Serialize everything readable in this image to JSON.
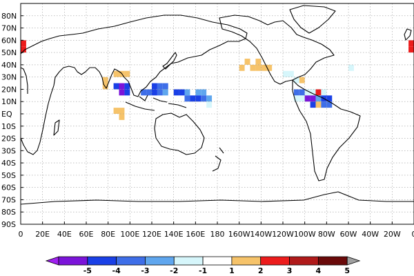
{
  "map": {
    "projection": "equirectangular",
    "lon_range": [
      0,
      360
    ],
    "lat_range": [
      -90,
      90
    ],
    "grid": true,
    "lat_labels": [
      "80N",
      "70N",
      "60N",
      "50N",
      "40N",
      "30N",
      "20N",
      "10N",
      "EQ",
      "10S",
      "20S",
      "30S",
      "40S",
      "50S",
      "60S",
      "70S",
      "80S",
      "90S"
    ],
    "lat_values": [
      80,
      70,
      60,
      50,
      40,
      30,
      20,
      10,
      0,
      -10,
      -20,
      -30,
      -40,
      -50,
      -60,
      -70,
      -80,
      -90
    ],
    "lon_labels": [
      "0",
      "20E",
      "40E",
      "60E",
      "80E",
      "100E",
      "120E",
      "140E",
      "160E",
      "180",
      "160W",
      "140W",
      "120W",
      "100W",
      "80W",
      "60W",
      "40W",
      "20W",
      "0"
    ],
    "lon_values": [
      0,
      20,
      40,
      60,
      80,
      100,
      120,
      140,
      160,
      180,
      200,
      220,
      240,
      260,
      280,
      300,
      320,
      340,
      360
    ]
  },
  "colors": {
    "-5": "#7b14d9",
    "-4": "#1a40e6",
    "-3": "#3e6ee8",
    "-2": "#5fa6ee",
    "-1": "#d6f6fb",
    "1": "#ffffff",
    "2": "#f6c36a",
    "3": "#ec1c1c",
    "4": "#b01a1a",
    "5": "#6a0a0a"
  },
  "colorbar": {
    "labels": [
      "-5",
      "-4",
      "-3",
      "-2",
      "-1",
      "1",
      "2",
      "3",
      "4",
      "5"
    ],
    "under_color": "#a020f0",
    "over_color": "#a0a0a0",
    "bin_colors": [
      "#7b14d9",
      "#1a40e6",
      "#3e6ee8",
      "#5fa6ee",
      "#d6f6fb",
      "#ffffff",
      "#f6c36a",
      "#ec1c1c",
      "#b01a1a",
      "#6a0a0a",
      "#a0a0a0"
    ]
  },
  "chart_data": {
    "type": "heatmap",
    "cell_size_deg": 5,
    "cells": [
      {
        "lon": 0,
        "lat": 55,
        "v": 3
      },
      {
        "lon": 0,
        "lat": 50,
        "v": 3
      },
      {
        "lon": 355,
        "lat": 55,
        "v": 3
      },
      {
        "lon": 355,
        "lat": 50,
        "v": 3
      },
      {
        "lon": 85,
        "lat": 30,
        "v": 2
      },
      {
        "lon": 90,
        "lat": 30,
        "v": 2
      },
      {
        "lon": 95,
        "lat": 30,
        "v": 2
      },
      {
        "lon": 75,
        "lat": 25,
        "v": 2
      },
      {
        "lon": 75,
        "lat": 20,
        "v": 2
      },
      {
        "lon": 85,
        "lat": 20,
        "v": -4
      },
      {
        "lon": 90,
        "lat": 20,
        "v": -5
      },
      {
        "lon": 95,
        "lat": 20,
        "v": -4
      },
      {
        "lon": 120,
        "lat": 20,
        "v": -4
      },
      {
        "lon": 125,
        "lat": 20,
        "v": -3
      },
      {
        "lon": 130,
        "lat": 20,
        "v": -3
      },
      {
        "lon": 90,
        "lat": 15,
        "v": -5
      },
      {
        "lon": 95,
        "lat": 15,
        "v": -4
      },
      {
        "lon": 110,
        "lat": 15,
        "v": -3
      },
      {
        "lon": 115,
        "lat": 15,
        "v": -3
      },
      {
        "lon": 120,
        "lat": 15,
        "v": -4
      },
      {
        "lon": 125,
        "lat": 15,
        "v": -3
      },
      {
        "lon": 130,
        "lat": 15,
        "v": -2
      },
      {
        "lon": 140,
        "lat": 15,
        "v": -4
      },
      {
        "lon": 145,
        "lat": 15,
        "v": -4
      },
      {
        "lon": 150,
        "lat": 15,
        "v": -2
      },
      {
        "lon": 160,
        "lat": 15,
        "v": -2
      },
      {
        "lon": 165,
        "lat": 15,
        "v": -2
      },
      {
        "lon": 150,
        "lat": 10,
        "v": -3
      },
      {
        "lon": 155,
        "lat": 10,
        "v": -4
      },
      {
        "lon": 160,
        "lat": 10,
        "v": -4
      },
      {
        "lon": 165,
        "lat": 10,
        "v": -3
      },
      {
        "lon": 170,
        "lat": 10,
        "v": -2
      },
      {
        "lon": 170,
        "lat": 5,
        "v": -1
      },
      {
        "lon": 85,
        "lat": 0,
        "v": 2
      },
      {
        "lon": 90,
        "lat": 0,
        "v": 2
      },
      {
        "lon": 90,
        "lat": -5,
        "v": 2
      },
      {
        "lon": 200,
        "lat": 35,
        "v": 2
      },
      {
        "lon": 210,
        "lat": 35,
        "v": 2
      },
      {
        "lon": 215,
        "lat": 35,
        "v": 2
      },
      {
        "lon": 220,
        "lat": 35,
        "v": 2
      },
      {
        "lon": 225,
        "lat": 35,
        "v": 2
      },
      {
        "lon": 205,
        "lat": 40,
        "v": 2
      },
      {
        "lon": 215,
        "lat": 40,
        "v": 2
      },
      {
        "lon": 240,
        "lat": 30,
        "v": -1
      },
      {
        "lon": 245,
        "lat": 30,
        "v": -1
      },
      {
        "lon": 255,
        "lat": 25,
        "v": 2
      },
      {
        "lon": 250,
        "lat": 25,
        "v": -1
      },
      {
        "lon": 300,
        "lat": 35,
        "v": -1
      },
      {
        "lon": 250,
        "lat": 15,
        "v": -3
      },
      {
        "lon": 255,
        "lat": 15,
        "v": -3
      },
      {
        "lon": 260,
        "lat": 15,
        "v": -1
      },
      {
        "lon": 265,
        "lat": 15,
        "v": -1
      },
      {
        "lon": 270,
        "lat": 15,
        "v": 3
      },
      {
        "lon": 275,
        "lat": 15,
        "v": -1
      },
      {
        "lon": 250,
        "lat": 10,
        "v": -1
      },
      {
        "lon": 255,
        "lat": 10,
        "v": -1
      },
      {
        "lon": 260,
        "lat": 10,
        "v": -5
      },
      {
        "lon": 265,
        "lat": 10,
        "v": -5
      },
      {
        "lon": 270,
        "lat": 10,
        "v": -2
      },
      {
        "lon": 275,
        "lat": 10,
        "v": -4
      },
      {
        "lon": 280,
        "lat": 10,
        "v": -4
      },
      {
        "lon": 265,
        "lat": 5,
        "v": -4
      },
      {
        "lon": 270,
        "lat": 5,
        "v": 2
      },
      {
        "lon": 275,
        "lat": 5,
        "v": -3
      },
      {
        "lon": 280,
        "lat": 5,
        "v": -3
      }
    ]
  }
}
